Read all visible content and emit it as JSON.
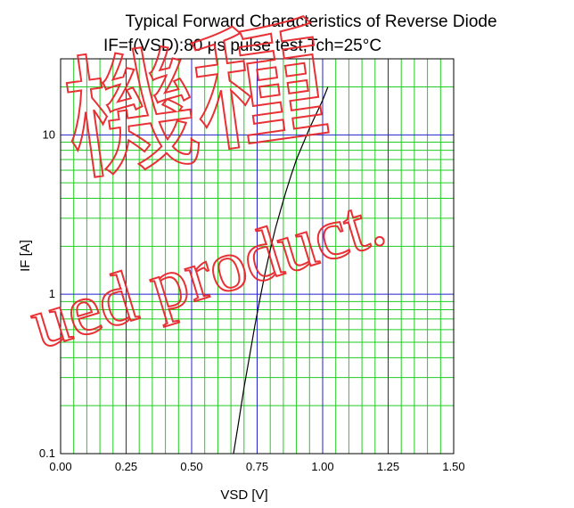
{
  "chart_data": {
    "type": "line",
    "title": "Typical Forward Characteristics of Reverse Diode",
    "subtitle": "IF=f(VSD):80 μs pulse test,Tch=25°C",
    "xlabel": "VSD [V]",
    "ylabel": "IF [A]",
    "xlim": [
      0,
      1.5
    ],
    "ylim": [
      0.1,
      30
    ],
    "yscale": "log",
    "grid": true,
    "x_ticks": [
      "0.00",
      "0.25",
      "0.50",
      "0.75",
      "1.00",
      "1.25",
      "1.50"
    ],
    "y_ticks": [
      {
        "value": 0.1,
        "label": "0.1"
      },
      {
        "value": 1,
        "label": "1"
      },
      {
        "value": 10,
        "label": "10"
      }
    ],
    "series": [
      {
        "color": "#000000",
        "x": [
          0.66,
          0.68,
          0.7,
          0.72,
          0.74,
          0.76,
          0.78,
          0.8,
          0.82,
          0.84,
          0.86,
          0.88,
          0.9,
          0.95,
          1.0,
          1.02
        ],
        "y": [
          0.1,
          0.16,
          0.26,
          0.4,
          0.62,
          0.92,
          1.35,
          1.9,
          2.6,
          3.4,
          4.4,
          5.6,
          7.0,
          11.0,
          16.5,
          20.0
        ]
      }
    ]
  },
  "watermark": {
    "characters": [
      "機",
      "種"
    ],
    "text": "ued product.",
    "color": "#e8262b"
  }
}
